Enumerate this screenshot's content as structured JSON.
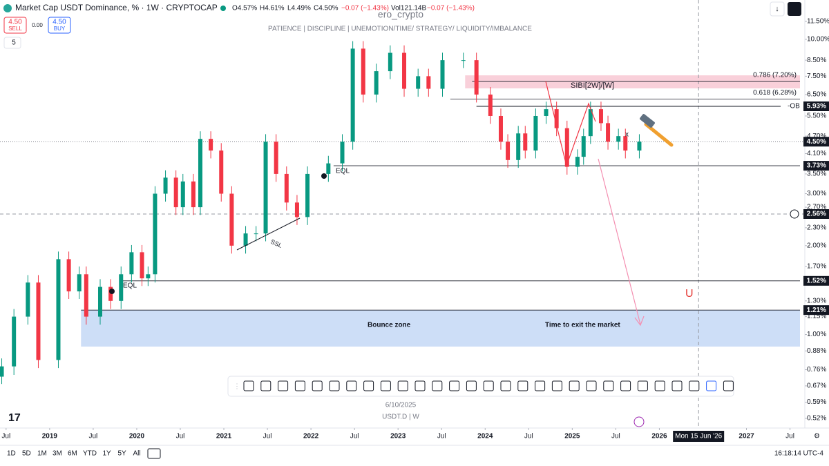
{
  "header": {
    "symbol": "Market Cap USDT Dominance, % · 1W · CRYPTOCAP",
    "open": "O4.57%",
    "high": "H4.61%",
    "low": "L4.49%",
    "close": "C4.50%",
    "change": "−0.07 (−1.43%)",
    "volume": "Vol121.14B",
    "volume_change": "−0.07 (−1.43%)"
  },
  "trade": {
    "sell_price": "4.50",
    "sell": "SELL",
    "spread": "0.00",
    "buy_price": "4.50",
    "buy": "BUY",
    "indicators": "5"
  },
  "watermark": {
    "author": "ero_crypto",
    "motto": "PATIENCE  |  DISCIPLINE  |  UNEMOTION/TIME/ STRATEGY/ LIQUIDITY/IMBALANCE",
    "date": "6/10/2025",
    "ticker": "USDT.D | W"
  },
  "chart_data": {
    "type": "candlestick",
    "log_scale": true,
    "grid": false,
    "up_color": "#089981",
    "down_color": "#f23645",
    "x": [
      2018.45,
      2018.59,
      2018.75,
      2018.87,
      2019.1,
      2019.22,
      2019.34,
      2019.42,
      2019.58,
      2019.7,
      2019.82,
      2019.94,
      2020.06,
      2020.13,
      2020.21,
      2020.33,
      2020.45,
      2020.53,
      2020.65,
      2020.73,
      2020.85,
      2020.97,
      2021.09,
      2021.25,
      2021.37,
      2021.48,
      2021.6,
      2021.72,
      2021.84,
      2021.96,
      2022.2,
      2022.36,
      2022.48,
      2022.6,
      2022.75,
      2022.91,
      2023.07,
      2023.23,
      2023.35,
      2023.51,
      2023.75,
      2023.9,
      2024.06,
      2024.18,
      2024.26,
      2024.38,
      2024.46,
      2024.58,
      2024.7,
      2024.82,
      2024.94,
      2025.06,
      2025.13,
      2025.21,
      2025.33,
      2025.41,
      2025.53,
      2025.61,
      2025.77
    ],
    "open": [
      0.72,
      0.78,
      1.15,
      1.5,
      0.82,
      1.8,
      1.4,
      1.6,
      1.15,
      1.45,
      1.3,
      1.6,
      1.9,
      1.55,
      1.6,
      3.0,
      3.4,
      2.7,
      3.3,
      2.7,
      4.6,
      4.2,
      3.0,
      2.0,
      2.2,
      2.2,
      4.5,
      3.5,
      2.8,
      2.5,
      3.5,
      3.8,
      4.5,
      9.3,
      6.5,
      7.8,
      9.0,
      6.8,
      7.5,
      6.8,
      8.5,
      8.5,
      6.5,
      5.5,
      4.5,
      3.9,
      4.8,
      4.2,
      5.5,
      5.8,
      5.0,
      3.7,
      4.0,
      4.7,
      5.8,
      5.2,
      4.5,
      4.7,
      4.2
    ],
    "high": [
      0.83,
      1.22,
      1.59,
      1.59,
      1.91,
      1.91,
      1.7,
      1.7,
      1.54,
      1.54,
      1.7,
      2.01,
      2.01,
      1.7,
      3.18,
      3.6,
      3.6,
      3.5,
      3.5,
      4.88,
      4.88,
      4.45,
      3.18,
      2.33,
      2.33,
      4.77,
      4.77,
      3.71,
      2.97,
      3.71,
      4.03,
      4.77,
      9.86,
      9.86,
      8.27,
      9.54,
      9.54,
      7.95,
      7.95,
      9.01,
      9.01,
      9.01,
      6.89,
      5.83,
      4.77,
      5.09,
      5.09,
      5.83,
      6.15,
      6.15,
      5.3,
      4.24,
      4.98,
      6.15,
      6.15,
      5.51,
      4.98,
      4.98,
      4.77
    ],
    "low": [
      0.68,
      0.73,
      1.08,
      0.77,
      0.77,
      1.32,
      1.32,
      1.08,
      1.08,
      1.22,
      1.22,
      1.5,
      1.46,
      1.46,
      1.5,
      2.82,
      2.54,
      2.54,
      2.54,
      2.54,
      3.95,
      2.82,
      1.88,
      1.88,
      2.07,
      2.07,
      3.29,
      2.63,
      2.35,
      2.35,
      3.29,
      3.57,
      4.23,
      6.11,
      6.11,
      7.33,
      6.39,
      6.39,
      6.39,
      6.39,
      7.99,
      6.11,
      5.17,
      4.23,
      3.67,
      3.67,
      3.95,
      3.95,
      5.17,
      4.7,
      3.48,
      3.48,
      3.76,
      4.42,
      4.89,
      4.23,
      4.23,
      3.95,
      3.95
    ],
    "close": [
      0.78,
      1.15,
      1.5,
      0.82,
      1.8,
      1.4,
      1.6,
      1.15,
      1.45,
      1.3,
      1.6,
      1.9,
      1.55,
      1.6,
      3.0,
      3.4,
      2.7,
      3.3,
      2.7,
      4.6,
      4.2,
      3.0,
      2.0,
      2.2,
      2.2,
      4.5,
      3.5,
      2.8,
      2.5,
      3.5,
      3.8,
      4.5,
      9.3,
      6.5,
      7.8,
      9.0,
      6.8,
      7.5,
      6.8,
      8.5,
      8.5,
      6.5,
      5.5,
      4.5,
      3.9,
      4.8,
      4.2,
      5.5,
      5.8,
      5.0,
      3.7,
      4.0,
      4.7,
      5.8,
      5.2,
      4.5,
      4.7,
      4.2,
      4.5
    ],
    "xlim": [
      2018.43,
      2027.67
    ],
    "ylim": [
      0.52,
      11.5
    ],
    "xticks": [
      {
        "value": 2018.5,
        "label": "Jul"
      },
      {
        "value": 2019,
        "label": "2019"
      },
      {
        "value": 2019.5,
        "label": "Jul"
      },
      {
        "value": 2020,
        "label": "2020"
      },
      {
        "value": 2020.5,
        "label": "Jul"
      },
      {
        "value": 2021,
        "label": "2021"
      },
      {
        "value": 2021.5,
        "label": "Jul"
      },
      {
        "value": 2022,
        "label": "2022"
      },
      {
        "value": 2022.5,
        "label": "Jul"
      },
      {
        "value": 2023,
        "label": "2023"
      },
      {
        "value": 2023.5,
        "label": "Jul"
      },
      {
        "value": 2024,
        "label": "2024"
      },
      {
        "value": 2024.5,
        "label": "Jul"
      },
      {
        "value": 2025,
        "label": "2025"
      },
      {
        "value": 2025.5,
        "label": "Jul"
      },
      {
        "value": 2026,
        "label": "2026"
      },
      {
        "value": 2027,
        "label": "2027"
      },
      {
        "value": 2027.5,
        "label": "Jul"
      }
    ],
    "yticks": [
      {
        "value": 11.5,
        "label": "11.50%"
      },
      {
        "value": 10,
        "label": "10.00%"
      },
      {
        "value": 8.5,
        "label": "8.50%"
      },
      {
        "value": 7.5,
        "label": "7.50%"
      },
      {
        "value": 6.5,
        "label": "6.50%"
      },
      {
        "value": 5.5,
        "label": "5.50%"
      },
      {
        "value": 4.7,
        "label": "4.70%"
      },
      {
        "value": 4.1,
        "label": "4.10%"
      },
      {
        "value": 3.5,
        "label": "3.50%"
      },
      {
        "value": 3,
        "label": "3.00%"
      },
      {
        "value": 2.7,
        "label": "2.70%"
      },
      {
        "value": 2.3,
        "label": "2.30%"
      },
      {
        "value": 2,
        "label": "2.00%"
      },
      {
        "value": 1.7,
        "label": "1.70%"
      },
      {
        "value": 1.3,
        "label": "1.30%"
      },
      {
        "value": 1.15,
        "label": "1.15%"
      },
      {
        "value": 1,
        "label": "1.00%"
      },
      {
        "value": 0.88,
        "label": "0.88%"
      },
      {
        "value": 0.76,
        "label": "0.76%"
      },
      {
        "value": 0.67,
        "label": "0.67%"
      },
      {
        "value": 0.59,
        "label": "0.59%"
      },
      {
        "value": 0.52,
        "label": "0.52%"
      }
    ],
    "levels": [
      {
        "value": 5.93,
        "label": "5.93%",
        "x0": 2023.9
      },
      {
        "value": 3.73,
        "label": "3.73%",
        "x0": 2022.26
      },
      {
        "value": 1.52,
        "label": "1.52%",
        "x0": 2019.82
      },
      {
        "value": 1.21,
        "label": "1.21%",
        "x0": 2019.36
      }
    ],
    "last_price": {
      "value": 4.5,
      "label": "4.50%"
    },
    "crosshair": {
      "value": 2.56,
      "label": "2.56%",
      "date": "Mon 15 Jun '26",
      "x": 2026.45
    },
    "fibs": [
      {
        "value": 7.2,
        "label": "0.786 (7.20%)",
        "x0": 2023.85
      },
      {
        "value": 6.28,
        "label": "0.618 (6.28%)",
        "x0": 2023.6
      }
    ],
    "zones": [
      {
        "label": "SIBI[2W]/[W]",
        "x0": 2023.77,
        "top": 7.55,
        "bottom": 6.82,
        "color": "#f8c8d4"
      },
      {
        "label": "Bounce zone",
        "x0": 2019.36,
        "top": 1.21,
        "bottom": 0.91,
        "color": "#c4d8f6"
      }
    ],
    "annotations": {
      "ob": "-OB",
      "eql_1": "EQL",
      "eql_2": "EQL",
      "ssl": "SSL",
      "exit": "Time to exit the market",
      "mark": "x"
    }
  },
  "footer": {
    "ranges": [
      "1D",
      "5D",
      "1M",
      "3M",
      "6M",
      "YTD",
      "1Y",
      "5Y",
      "All"
    ],
    "clock": "16:18:14 UTC-4"
  }
}
